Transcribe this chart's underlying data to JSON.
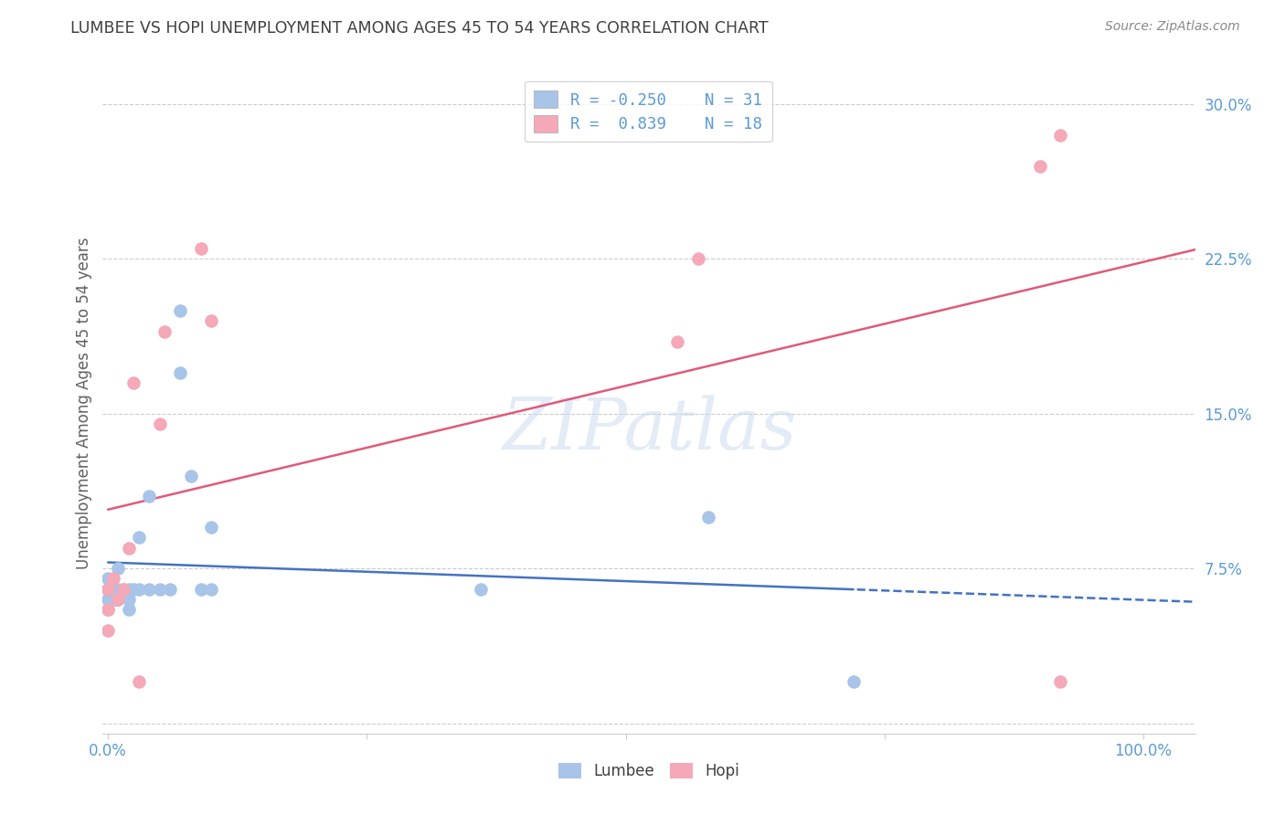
{
  "title": "LUMBEE VS HOPI UNEMPLOYMENT AMONG AGES 45 TO 54 YEARS CORRELATION CHART",
  "source": "Source: ZipAtlas.com",
  "ylabel": "Unemployment Among Ages 45 to 54 years",
  "background_color": "#ffffff",
  "grid_color": "#cccccc",
  "lumbee_color": "#a8c4e8",
  "hopi_color": "#f4a8b8",
  "lumbee_line_color": "#4472c4",
  "hopi_line_color": "#e05a7a",
  "R_lumbee": -0.25,
  "N_lumbee": 31,
  "R_hopi": 0.839,
  "N_hopi": 18,
  "ymin": -0.005,
  "ymax": 0.315,
  "xmin": -0.005,
  "xmax": 1.05,
  "lumbee_x": [
    0.0,
    0.0,
    0.0,
    0.0,
    0.0,
    0.005,
    0.007,
    0.008,
    0.01,
    0.01,
    0.01,
    0.015,
    0.02,
    0.02,
    0.02,
    0.025,
    0.03,
    0.03,
    0.04,
    0.04,
    0.05,
    0.06,
    0.07,
    0.07,
    0.08,
    0.09,
    0.1,
    0.1,
    0.36,
    0.58,
    0.72
  ],
  "lumbee_y": [
    0.055,
    0.06,
    0.065,
    0.065,
    0.07,
    0.065,
    0.06,
    0.06,
    0.065,
    0.06,
    0.075,
    0.065,
    0.06,
    0.065,
    0.055,
    0.065,
    0.065,
    0.09,
    0.065,
    0.11,
    0.065,
    0.065,
    0.17,
    0.2,
    0.12,
    0.065,
    0.095,
    0.065,
    0.065,
    0.1,
    0.02
  ],
  "hopi_x": [
    0.0,
    0.0,
    0.0,
    0.005,
    0.01,
    0.015,
    0.02,
    0.025,
    0.03,
    0.05,
    0.055,
    0.09,
    0.1,
    0.55,
    0.57,
    0.9,
    0.92,
    0.92
  ],
  "hopi_y": [
    0.045,
    0.055,
    0.065,
    0.07,
    0.06,
    0.065,
    0.085,
    0.165,
    0.02,
    0.145,
    0.19,
    0.23,
    0.195,
    0.185,
    0.225,
    0.27,
    0.285,
    0.02
  ],
  "watermark": "ZIPatlas",
  "title_color": "#404040",
  "axis_label_color": "#606060",
  "tick_color": "#5b9bd5",
  "source_color": "#888888"
}
